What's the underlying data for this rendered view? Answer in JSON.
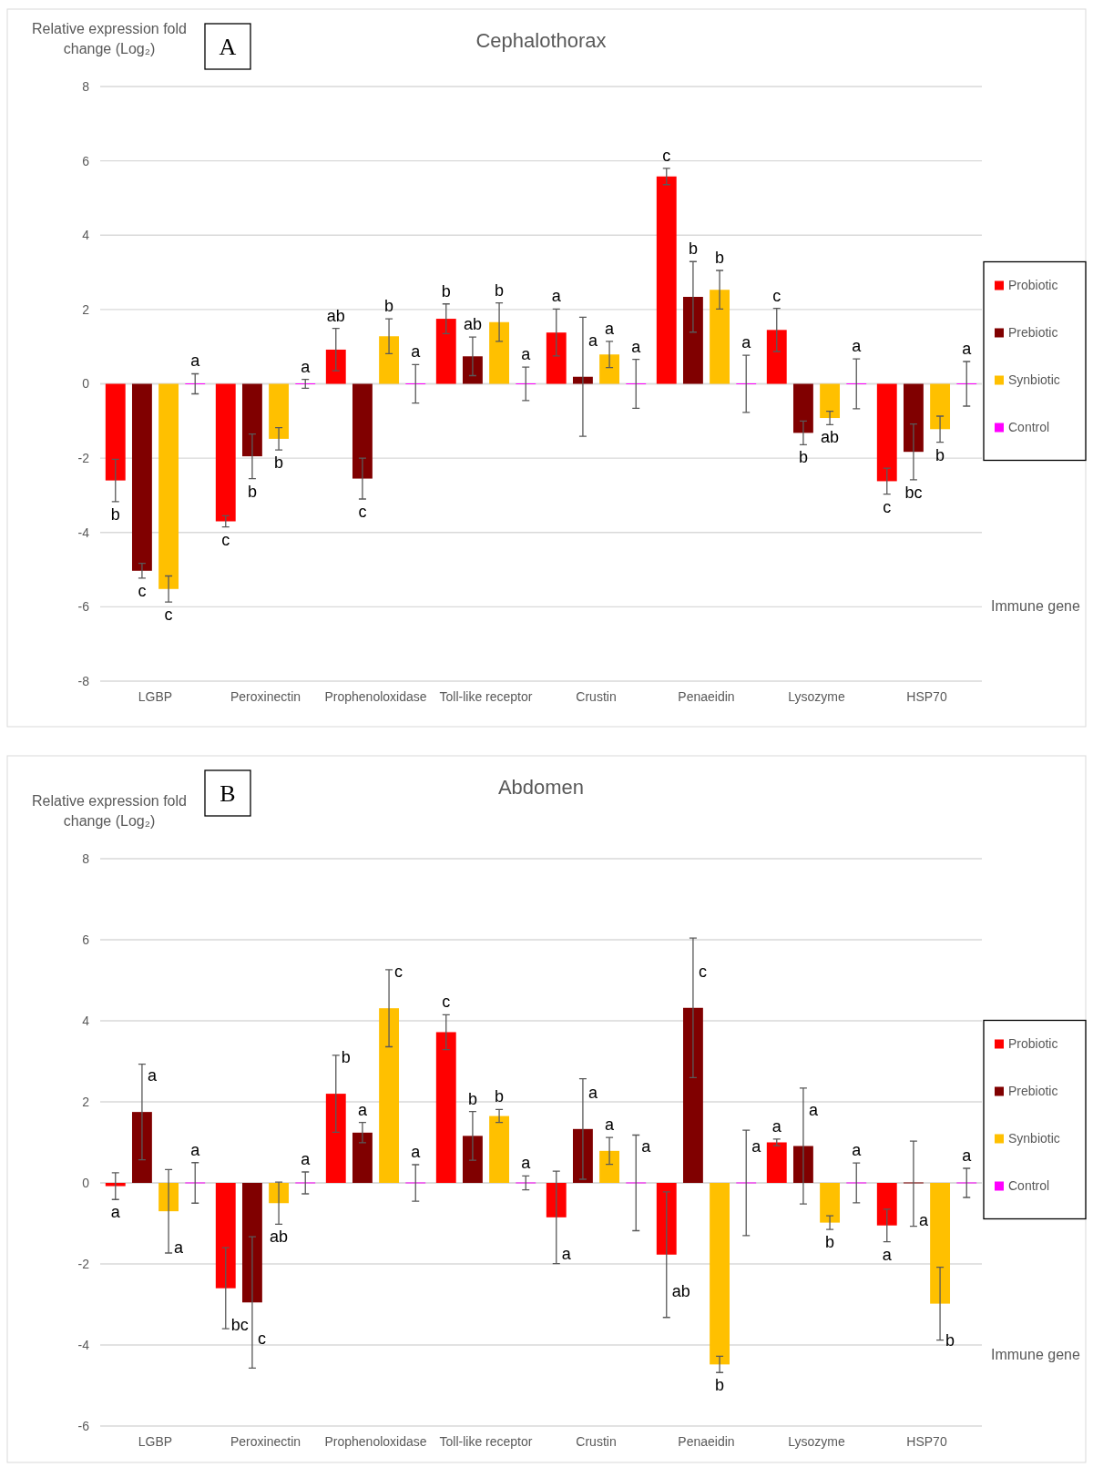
{
  "chart_data": [
    {
      "type": "bar",
      "title": "Cephalothorax",
      "xlabel": "Immune gene",
      "ylabel": "Relative expression fold change (Log₂)",
      "annotations": [
        "A"
      ],
      "categories": [
        "LGBP",
        "Peroxinectin",
        "Prophenoloxidase",
        "Toll-like receptor",
        "Crustin",
        "Penaeidin",
        "Lysozyme",
        "HSP70"
      ],
      "ylim": [
        -8,
        8
      ],
      "yticks": [
        -8,
        -6,
        -4,
        -2,
        0,
        2,
        4,
        6,
        8
      ],
      "grid": "y",
      "legend": "right",
      "series": [
        {
          "name": "Probiotic",
          "color": "#ff0000",
          "values": [
            -2.6,
            -3.7,
            0.92,
            1.75,
            1.38,
            5.58,
            1.45,
            -2.62
          ],
          "errors": [
            0.57,
            0.15,
            0.57,
            0.4,
            0.63,
            0.22,
            0.58,
            0.35
          ],
          "value_labels": [
            "b",
            "c",
            "ab",
            "b",
            "a",
            "c",
            "c",
            "c"
          ]
        },
        {
          "name": "Prebiotic",
          "color": "#800000",
          "values": [
            -5.03,
            -1.95,
            -2.55,
            0.74,
            0.19,
            2.34,
            -1.32,
            -1.83
          ],
          "errors": [
            0.2,
            0.6,
            0.55,
            0.52,
            1.6,
            0.95,
            0.32,
            0.75
          ],
          "value_labels": [
            "c",
            "b",
            "c",
            "ab",
            "a",
            "b",
            "b",
            "bc"
          ]
        },
        {
          "name": "Synbiotic",
          "color": "#ffc000",
          "values": [
            -5.52,
            -1.48,
            1.28,
            1.66,
            0.79,
            2.53,
            -0.92,
            -1.22
          ],
          "errors": [
            0.35,
            0.3,
            0.47,
            0.52,
            0.35,
            0.52,
            0.18,
            0.35
          ],
          "value_labels": [
            "c",
            "b",
            "b",
            "b",
            "a",
            "b",
            "ab",
            "b"
          ]
        },
        {
          "name": "Control",
          "color": "#ff00ff",
          "values": [
            0,
            0,
            0,
            0,
            0,
            0,
            0,
            0
          ],
          "errors": [
            0.27,
            0.12,
            0.52,
            0.45,
            0.66,
            0.77,
            0.67,
            0.6
          ],
          "value_labels": [
            "a",
            "a",
            "a",
            "a",
            "a",
            "a",
            "a",
            "a"
          ]
        }
      ]
    },
    {
      "type": "bar",
      "title": "Abdomen",
      "xlabel": "Immune gene",
      "ylabel": "Relative expression fold change (Log₂)",
      "annotations": [
        "B"
      ],
      "categories": [
        "LGBP",
        "Peroxinectin",
        "Prophenoloxidase",
        "Toll-like receptor",
        "Crustin",
        "Penaeidin",
        "Lysozyme",
        "HSP70"
      ],
      "ylim": [
        -6,
        8
      ],
      "yticks": [
        -6,
        -4,
        -2,
        0,
        2,
        4,
        6,
        8
      ],
      "grid": "y",
      "legend": "right",
      "series": [
        {
          "name": "Probiotic",
          "color": "#ff0000",
          "values": [
            -0.08,
            -2.6,
            2.2,
            3.72,
            -0.85,
            -1.77,
            1.0,
            -1.05
          ],
          "errors": [
            0.33,
            1.0,
            0.95,
            0.43,
            1.14,
            1.55,
            0.08,
            0.4
          ],
          "value_labels": [
            "a",
            "bc",
            "b",
            "c",
            "a",
            "ab",
            "a",
            "a"
          ]
        },
        {
          "name": "Prebiotic",
          "color": "#800000",
          "values": [
            1.75,
            -2.95,
            1.24,
            1.16,
            1.33,
            4.32,
            0.91,
            -0.02
          ],
          "errors": [
            1.18,
            1.62,
            0.25,
            0.6,
            1.24,
            1.72,
            1.43,
            1.05
          ],
          "value_labels": [
            "a",
            "c",
            "a",
            "b",
            "a",
            "c",
            "a",
            "a"
          ]
        },
        {
          "name": "Synbiotic",
          "color": "#ffc000",
          "values": [
            -0.7,
            -0.5,
            4.31,
            1.65,
            0.79,
            -4.48,
            -0.98,
            -2.98
          ],
          "errors": [
            1.03,
            0.52,
            0.95,
            0.16,
            0.33,
            0.2,
            0.17,
            0.9
          ],
          "value_labels": [
            "a",
            "ab",
            "c",
            "b",
            "a",
            "b",
            "b",
            "b"
          ]
        },
        {
          "name": "Control",
          "color": "#ff00ff",
          "values": [
            0,
            0,
            0,
            0,
            0,
            0,
            0,
            0
          ],
          "errors": [
            0.5,
            0.27,
            0.45,
            0.17,
            1.18,
            1.3,
            0.49,
            0.36
          ],
          "value_labels": [
            "a",
            "a",
            "a",
            "a",
            "a",
            "a",
            "a",
            "a"
          ]
        }
      ]
    }
  ]
}
